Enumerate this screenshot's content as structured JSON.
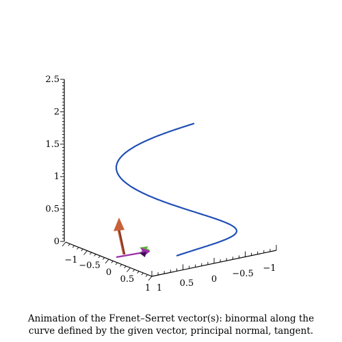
{
  "caption": {
    "line1": "Animation of the Frenet–Serret vector(s): binormal along the",
    "line2": "curve defined by the given vector, principal normal, tangent."
  },
  "colors": {
    "curve": "#1f4fb5",
    "binormal_arrow": "#c8613a",
    "normal_arrow": "#9b2fa8",
    "tangent_arrow": "#5fae3c",
    "axes": "#000000"
  },
  "chart_data": {
    "type": "line",
    "dimension": "3d",
    "title": "",
    "axes": {
      "z": {
        "range": [
          0,
          2.5
        ],
        "ticks": [
          "0",
          "0.5",
          "1",
          "1.5",
          "2",
          "2.5"
        ]
      },
      "x": {
        "range": [
          -1,
          1
        ],
        "ticks": [
          "-1",
          "-0.5",
          "0",
          "0.5",
          "1"
        ]
      },
      "y": {
        "range": [
          -1,
          1
        ],
        "ticks": [
          "1",
          "0.5",
          "0",
          "-0.5",
          "-1"
        ]
      }
    },
    "series": [
      {
        "kind": "helix-curve",
        "points": [
          [
            1.0,
            0.0,
            0.0
          ],
          [
            0.92,
            0.38,
            0.13
          ],
          [
            0.71,
            0.71,
            0.26
          ],
          [
            0.38,
            0.92,
            0.39
          ],
          [
            0.0,
            1.0,
            0.52
          ],
          [
            -0.38,
            0.92,
            0.65
          ],
          [
            -0.71,
            0.71,
            0.79
          ],
          [
            -0.92,
            0.38,
            0.92
          ],
          [
            -1.0,
            0.0,
            1.05
          ],
          [
            -0.92,
            -0.38,
            1.18
          ],
          [
            -0.71,
            -0.71,
            1.31
          ],
          [
            -0.38,
            -0.92,
            1.44
          ],
          [
            0.0,
            -1.0,
            1.57
          ],
          [
            0.38,
            -0.92,
            1.7
          ],
          [
            0.71,
            -0.71,
            1.83
          ],
          [
            0.92,
            -0.38,
            1.96
          ],
          [
            1.0,
            0.0,
            2.09
          ],
          [
            0.95,
            0.3,
            2.2
          ]
        ]
      }
    ],
    "vectors": [
      {
        "name": "binormal",
        "base": [
          1.0,
          0.0,
          0.0
        ],
        "dir": [
          0.0,
          -0.7,
          0.7
        ]
      },
      {
        "name": "principal normal",
        "base": [
          1.0,
          0.0,
          0.0
        ],
        "dir": [
          -0.4,
          0.0,
          0.0
        ]
      },
      {
        "name": "tangent",
        "base": [
          1.0,
          0.0,
          0.0
        ],
        "dir": [
          0.0,
          0.15,
          0.05
        ]
      }
    ]
  }
}
